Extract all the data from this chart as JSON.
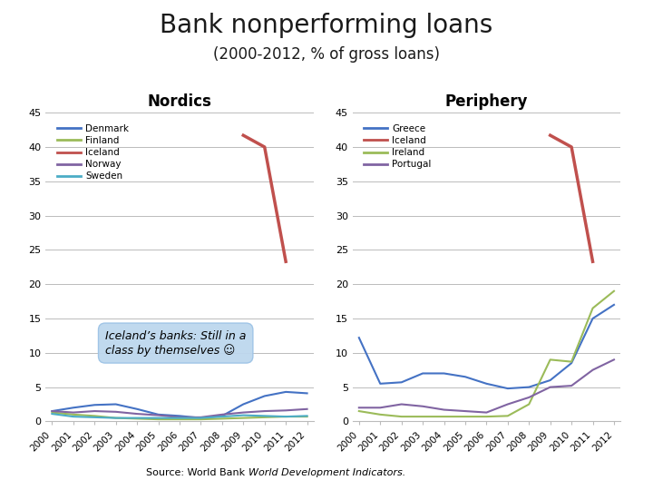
{
  "title": "Bank nonperforming loans",
  "subtitle": "(2000-2012, % of gross loans)",
  "years": [
    2000,
    2001,
    2002,
    2003,
    2004,
    2005,
    2006,
    2007,
    2008,
    2009,
    2010,
    2011,
    2012
  ],
  "nordics": {
    "Denmark": [
      1.5,
      2.0,
      2.4,
      2.5,
      1.8,
      1.0,
      0.8,
      0.5,
      0.8,
      2.5,
      3.7,
      4.3,
      4.1
    ],
    "Finland": [
      1.3,
      1.0,
      0.8,
      0.5,
      0.4,
      0.3,
      0.3,
      0.3,
      0.4,
      0.5,
      0.6,
      0.7,
      0.7
    ],
    "Iceland": [
      null,
      null,
      null,
      null,
      null,
      null,
      null,
      null,
      null,
      41.7,
      40.0,
      23.3,
      null
    ],
    "Norway": [
      1.5,
      1.3,
      1.5,
      1.4,
      1.1,
      0.9,
      0.6,
      0.6,
      1.0,
      1.3,
      1.5,
      1.6,
      1.8
    ],
    "Sweden": [
      1.1,
      0.7,
      0.6,
      0.5,
      0.5,
      0.5,
      0.5,
      0.5,
      0.7,
      0.9,
      0.8,
      0.7,
      0.8
    ]
  },
  "nordics_colors": {
    "Denmark": "#4472C4",
    "Finland": "#9BBB59",
    "Iceland": "#C0504D",
    "Norway": "#8064A2",
    "Sweden": "#4BACC6"
  },
  "periphery": {
    "Greece": [
      12.2,
      5.5,
      5.7,
      7.0,
      7.0,
      6.5,
      5.5,
      4.8,
      5.0,
      6.0,
      8.5,
      15.0,
      17.0
    ],
    "Iceland": [
      null,
      null,
      null,
      null,
      null,
      null,
      null,
      null,
      null,
      41.7,
      40.0,
      23.3,
      null
    ],
    "Ireland": [
      1.5,
      1.0,
      0.7,
      0.7,
      0.7,
      0.7,
      0.7,
      0.8,
      2.5,
      9.0,
      8.7,
      16.5,
      19.0
    ],
    "Portugal": [
      2.0,
      2.0,
      2.5,
      2.2,
      1.7,
      1.5,
      1.3,
      2.5,
      3.5,
      5.0,
      5.2,
      7.5,
      9.0
    ]
  },
  "periphery_colors": {
    "Greece": "#4472C4",
    "Iceland": "#C0504D",
    "Ireland": "#9BBB59",
    "Portugal": "#8064A2"
  },
  "ylim": [
    0,
    45
  ],
  "yticks": [
    0,
    5,
    10,
    15,
    20,
    25,
    30,
    35,
    40,
    45
  ],
  "annotation": "Iceland’s banks: Still in a\nclass by themselves ☺",
  "source_normal": "Source: World Bank ",
  "source_italic": "World Development Indicators."
}
